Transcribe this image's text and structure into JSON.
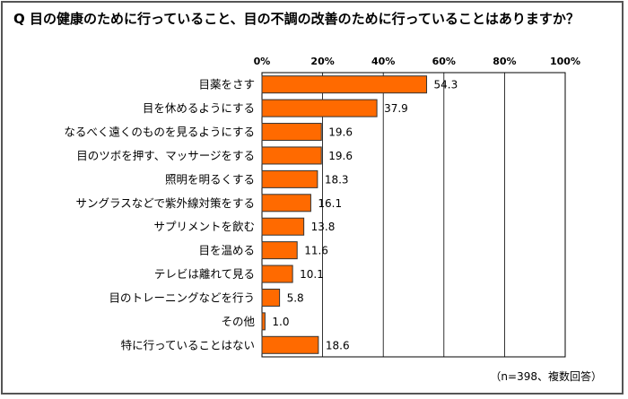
{
  "title": "Q 目の健康のために行っていること、目の不調の改善のために行っていることはありますか？",
  "note": "（n=398、複数回答）",
  "chart_data": {
    "type": "bar",
    "orientation": "horizontal",
    "categories": [
      "目薬をさす",
      "目を休めるようにする",
      "なるべく遠くのものを見るようにする",
      "目のツボを押す、マッサージをする",
      "照明を明るくする",
      "サングラスなどで紫外線対策をする",
      "サプリメントを飲む",
      "目を温める",
      "テレビは離れて見る",
      "目のトレーニングなどを行う",
      "その他",
      "特に行っていることはない"
    ],
    "values": [
      54.3,
      37.9,
      19.6,
      19.6,
      18.3,
      16.1,
      13.8,
      11.6,
      10.1,
      5.8,
      1.0,
      18.6
    ],
    "value_labels": [
      "54.3",
      "37.9",
      "19.6",
      "19.6",
      "18.3",
      "16.1",
      "13.8",
      "11.6",
      "10.1",
      "5.8",
      "1.0",
      "18.6"
    ],
    "xlim": [
      0,
      100
    ],
    "xticks": [
      0,
      20,
      40,
      60,
      80,
      100
    ],
    "xtick_labels": [
      "0%",
      "20%",
      "40%",
      "60%",
      "80%",
      "100%"
    ],
    "grid": true,
    "bar_color": "#ff6a00",
    "bar_edge_color": "#333333"
  }
}
